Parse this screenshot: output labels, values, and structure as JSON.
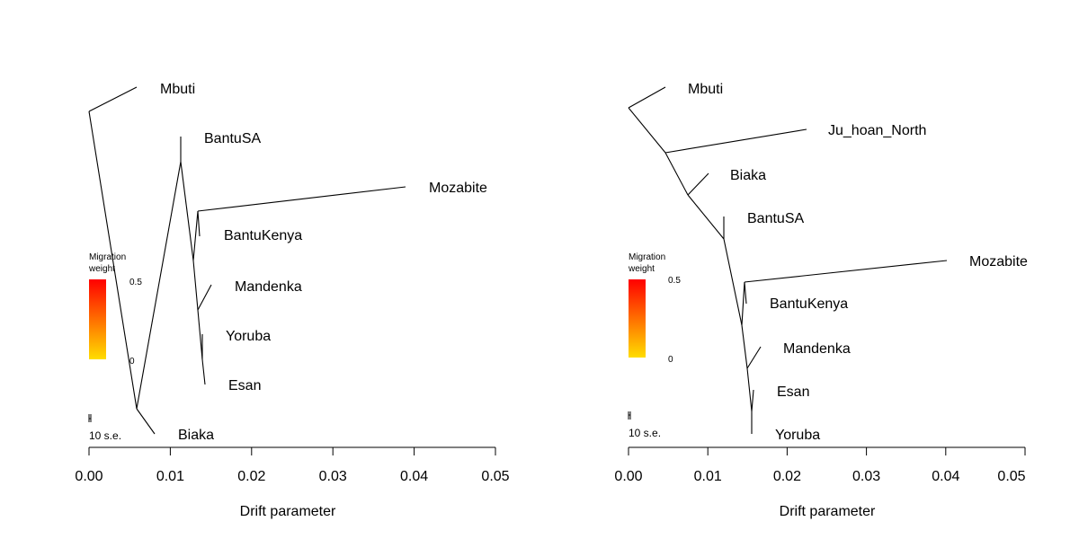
{
  "chart_data": [
    {
      "type": "tree",
      "title": "",
      "xlabel": "Drift parameter",
      "ylabel": "",
      "xlim": [
        0,
        0.05
      ],
      "xticks": [
        "0.00",
        "0.01",
        "0.02",
        "0.03",
        "0.04",
        "0.05"
      ],
      "legend": {
        "title_line1": "Migration",
        "title_line2": "weight",
        "max_label": "0.5",
        "min_label": "0",
        "color_high": "#ff0000",
        "color_low": "#ffdd00",
        "placement": "left-middle"
      },
      "scale_bar": {
        "label": "10 s.e."
      },
      "leaves": [
        {
          "name": "Mbuti",
          "drift": 0.0058
        },
        {
          "name": "BantuSA",
          "drift": 0.0113
        },
        {
          "name": "Mozabite",
          "drift": 0.039
        },
        {
          "name": "BantuKenya",
          "drift": 0.0137
        },
        {
          "name": "Mandenka",
          "drift": 0.015
        },
        {
          "name": "Yoruba",
          "drift": 0.014
        },
        {
          "name": "Esan",
          "drift": 0.0143
        },
        {
          "name": "Biaka",
          "drift": 0.0082
        }
      ]
    },
    {
      "type": "tree",
      "title": "",
      "xlabel": "Drift parameter",
      "ylabel": "",
      "xlim": [
        0,
        0.05
      ],
      "xticks": [
        "0.00",
        "0.01",
        "0.02",
        "0.03",
        "0.04",
        "0.05"
      ],
      "legend": {
        "title_line1": "Migration",
        "title_line2": "weight",
        "max_label": "0.5",
        "min_label": "0",
        "color_high": "#ff0000",
        "color_low": "#ffdd00",
        "placement": "left-middle"
      },
      "scale_bar": {
        "label": "10 s.e."
      },
      "leaves": [
        {
          "name": "Mbuti",
          "drift": 0.0045
        },
        {
          "name": "Ju_hoan_North",
          "drift": 0.0223
        },
        {
          "name": "Biaka",
          "drift": 0.01
        },
        {
          "name": "BantuSA",
          "drift": 0.012
        },
        {
          "name": "Mozabite",
          "drift": 0.04
        },
        {
          "name": "BantuKenya",
          "drift": 0.0148
        },
        {
          "name": "Mandenka",
          "drift": 0.0165
        },
        {
          "name": "Esan",
          "drift": 0.0158
        },
        {
          "name": "Yoruba",
          "drift": 0.0156
        }
      ]
    }
  ]
}
